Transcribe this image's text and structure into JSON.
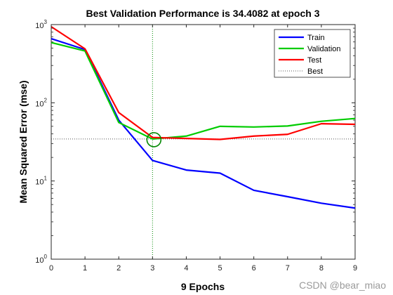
{
  "chart_data": {
    "type": "line",
    "title": "Best Validation Performance is 34.4082 at epoch 3",
    "xlabel": "9 Epochs",
    "ylabel": "Mean Squared Error  (mse)",
    "xlim": [
      0,
      9
    ],
    "ylim": [
      1,
      1000
    ],
    "yscale": "log",
    "x_ticks": [
      "0",
      "1",
      "2",
      "3",
      "4",
      "5",
      "6",
      "7",
      "8",
      "9"
    ],
    "y_ticks": [
      {
        "value": 1,
        "base": "10",
        "exp": "0"
      },
      {
        "value": 10,
        "base": "10",
        "exp": "1"
      },
      {
        "value": 100,
        "base": "10",
        "exp": "2"
      },
      {
        "value": 1000,
        "base": "10",
        "exp": "3"
      }
    ],
    "x": [
      0,
      1,
      2,
      3,
      4,
      5,
      6,
      7,
      8,
      9
    ],
    "series": [
      {
        "name": "Train",
        "color": "#0000ff",
        "values": [
          660,
          480,
          60,
          18.3,
          13.8,
          12.6,
          7.6,
          6.3,
          5.2,
          4.5
        ]
      },
      {
        "name": "Validation",
        "color": "#00cc00",
        "values": [
          590,
          460,
          56,
          34.4,
          37.5,
          50,
          49,
          50.5,
          58,
          63
        ]
      },
      {
        "name": "Test",
        "color": "#ff0000",
        "values": [
          940,
          490,
          75,
          36,
          35,
          34,
          37.5,
          39.5,
          54,
          53
        ]
      }
    ],
    "best": {
      "name": "Best",
      "epoch": 3,
      "value": 34.4082,
      "color": "#008800",
      "marker_color": "#008800"
    },
    "legend_position": "top-right",
    "grid": false
  },
  "watermark": "CSDN @bear_miao"
}
